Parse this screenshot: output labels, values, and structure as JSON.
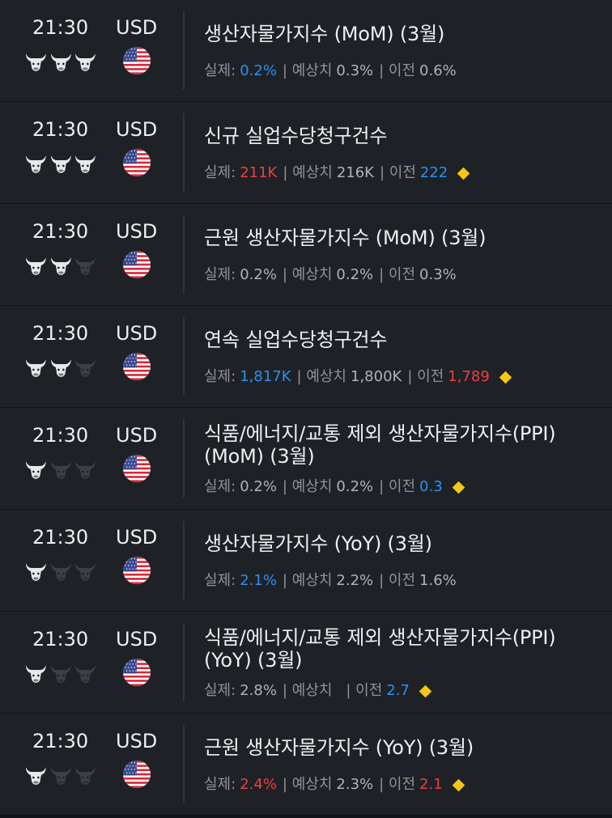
{
  "colors": {
    "background": "#111418",
    "row_background": "#1e2227",
    "text_primary": "#eceff2",
    "text_muted": "#8e949c",
    "value_neutral": "#aeb3b9",
    "value_positive_blue": "#2f8ff0",
    "value_negative_red": "#ee3f3f",
    "revision_marker": "#f5c518",
    "importance_on": "#e6e8eb",
    "importance_off": "#3b4047"
  },
  "labels": {
    "actual": "실제:",
    "forecast": "| 예상치",
    "previous": "| 이전"
  },
  "events": [
    {
      "time": "21:30",
      "currency": "USD",
      "importance": 3,
      "title": "생산자물가지수 (MoM) (3월)",
      "actual": "0.2%",
      "actual_color": "b",
      "forecast": "0.3%",
      "previous": "0.6%",
      "previous_color": "w",
      "revised": false
    },
    {
      "time": "21:30",
      "currency": "USD",
      "importance": 3,
      "title": "신규 실업수당청구건수",
      "actual": "211K",
      "actual_color": "r",
      "forecast": "216K",
      "previous": "222",
      "previous_color": "b",
      "revised": true
    },
    {
      "time": "21:30",
      "currency": "USD",
      "importance": 2,
      "title": "근원 생산자물가지수 (MoM) (3월)",
      "actual": "0.2%",
      "actual_color": "w",
      "forecast": "0.2%",
      "previous": "0.3%",
      "previous_color": "w",
      "revised": false
    },
    {
      "time": "21:30",
      "currency": "USD",
      "importance": 2,
      "title": "연속 실업수당청구건수",
      "actual": "1,817K",
      "actual_color": "b",
      "forecast": "1,800K",
      "previous": "1,789",
      "previous_color": "r",
      "revised": true
    },
    {
      "time": "21:30",
      "currency": "USD",
      "importance": 1,
      "title": "식품/에너지/교통 제외 생산자물가지수(PPI)",
      "title2": "(MoM) (3월)",
      "actual": "0.2%",
      "actual_color": "w",
      "forecast": "0.2%",
      "previous": "0.3",
      "previous_color": "b",
      "revised": true
    },
    {
      "time": "21:30",
      "currency": "USD",
      "importance": 1,
      "title": "생산자물가지수 (YoY) (3월)",
      "actual": "2.1%",
      "actual_color": "b",
      "forecast": "2.2%",
      "previous": "1.6%",
      "previous_color": "w",
      "revised": false
    },
    {
      "time": "21:30",
      "currency": "USD",
      "importance": 1,
      "title": "식품/에너지/교통 제외 생산자물가지수(PPI)",
      "title2": "(YoY) (3월)",
      "actual": "2.8%",
      "actual_color": "w",
      "forecast": "",
      "previous": "2.7",
      "previous_color": "b",
      "revised": true
    },
    {
      "time": "21:30",
      "currency": "USD",
      "importance": 1,
      "title": "근원 생산자물가지수 (YoY) (3월)",
      "actual": "2.4%",
      "actual_color": "r",
      "forecast": "2.3%",
      "previous": "2.1",
      "previous_color": "r",
      "revised": true
    }
  ]
}
